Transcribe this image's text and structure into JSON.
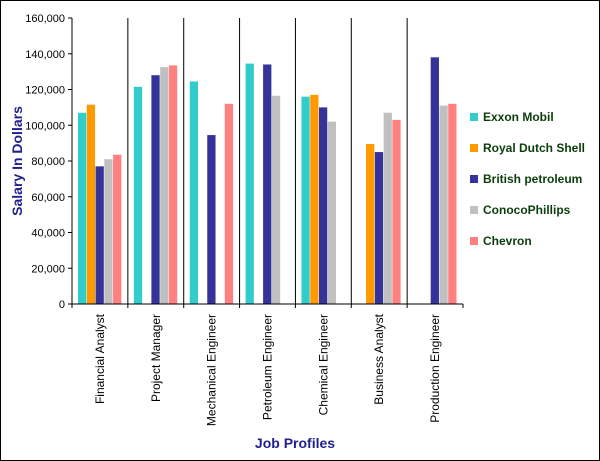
{
  "chart_data": {
    "type": "bar",
    "title": "",
    "xlabel": "Job Profiles",
    "ylabel": "Salary In Dollars",
    "ylim": [
      0,
      160000
    ],
    "yticks": [
      0,
      20000,
      40000,
      60000,
      80000,
      100000,
      120000,
      140000,
      160000
    ],
    "ytick_labels": [
      "0",
      "20,000",
      "40,000",
      "60,000",
      "80,000",
      "100,000",
      "120,000",
      "140,000",
      "160,000"
    ],
    "categories": [
      "Financial Analyst",
      "Project Manager",
      "Mechanical Engineer",
      "Petroleum Engineer",
      "Chemical Engineer",
      "Business Analyst",
      "Production Engineer"
    ],
    "series": [
      {
        "name": "Exxon Mobil",
        "color": "#33cccc",
        "values": [
          107000,
          121500,
          124500,
          134500,
          116000,
          null,
          null
        ]
      },
      {
        "name": "Royal Dutch Shell",
        "color": "#ff9900",
        "values": [
          111500,
          null,
          null,
          null,
          117000,
          89500,
          null
        ]
      },
      {
        "name": "British petroleum",
        "color": "#333399",
        "values": [
          77000,
          128000,
          94500,
          134000,
          110000,
          85000,
          138000
        ]
      },
      {
        "name": "ConocoPhillips",
        "color": "#c0c0c0",
        "values": [
          81000,
          132500,
          null,
          116500,
          102000,
          107000,
          111000
        ]
      },
      {
        "name": "Chevron",
        "color": "#ff8080",
        "values": [
          83500,
          133500,
          112000,
          null,
          null,
          103000,
          112000
        ]
      }
    ],
    "grid": false,
    "category_separators": true,
    "legend_position": "right"
  }
}
